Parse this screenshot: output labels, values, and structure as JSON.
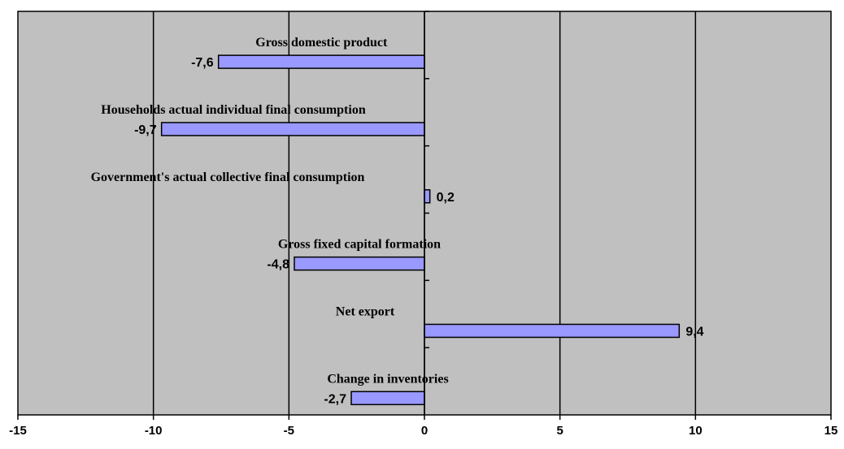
{
  "chart_data": {
    "type": "bar",
    "orientation": "horizontal",
    "categories": [
      "Gross domestic product",
      "Households actual individual final consumption",
      "Government's actual collective final consumption",
      "Gross fixed capital formation",
      "Net export",
      "Change in inventories"
    ],
    "values": [
      -7.6,
      -9.7,
      0.2,
      -4.8,
      9.4,
      -2.7
    ],
    "value_labels": [
      "-7,6",
      "-9,7",
      "0,2",
      "-4,8",
      "9,4",
      "-2,7"
    ],
    "xlim": [
      -15,
      15
    ],
    "x_ticks": [
      -15,
      -10,
      -5,
      0,
      5,
      10,
      15
    ],
    "x_tick_labels": [
      "-15",
      "-10",
      "-5",
      "0",
      "5",
      "10",
      "15"
    ],
    "title": "",
    "xlabel": "",
    "ylabel": "",
    "grid": "vertical major lines",
    "legend": "none",
    "colors": {
      "plot_background": "#c0c0c0",
      "bar_fill": "#9999ff",
      "bar_stroke": "#000000",
      "gridline": "#000000"
    }
  }
}
